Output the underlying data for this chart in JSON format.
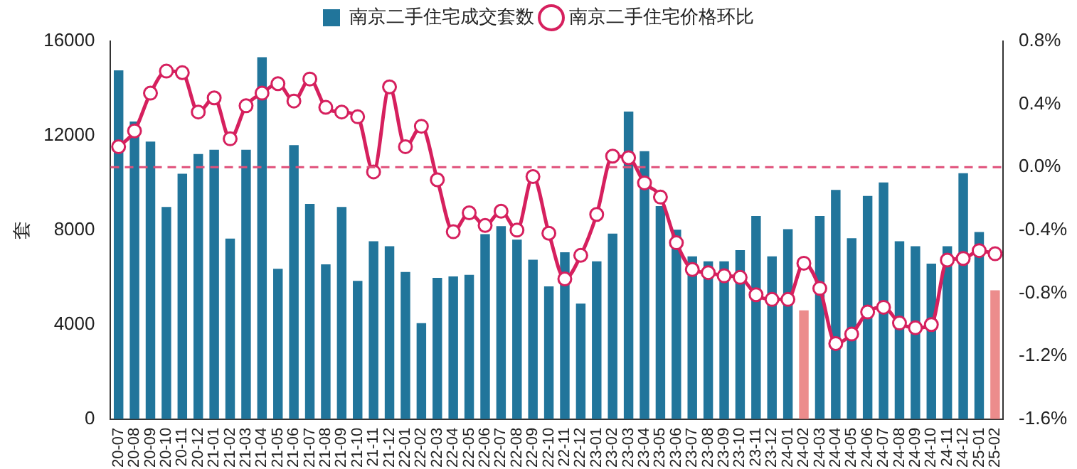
{
  "chart_data": {
    "type": "bar",
    "ylabel": "套",
    "categories": [
      "20-07",
      "20-08",
      "20-09",
      "20-10",
      "20-11",
      "20-12",
      "21-01",
      "21-02",
      "21-03",
      "21-04",
      "21-05",
      "21-06",
      "21-07",
      "21-08",
      "21-09",
      "21-10",
      "21-11",
      "21-12",
      "22-01",
      "22-02",
      "22-03",
      "22-04",
      "22-05",
      "22-06",
      "22-07",
      "22-08",
      "22-09",
      "22-10",
      "22-11",
      "22-12",
      "23-01",
      "23-02",
      "23-03",
      "23-04",
      "23-05",
      "23-06",
      "23-07",
      "23-08",
      "23-09",
      "23-10",
      "23-11",
      "23-12",
      "24-01",
      "24-02",
      "24-03",
      "24-04",
      "24-05",
      "24-06",
      "24-07",
      "24-08",
      "24-09",
      "24-10",
      "24-11",
      "24-12",
      "25-01",
      "25-02"
    ],
    "series": [
      {
        "name": "南京二手住宅成交套数",
        "color": "#21759b",
        "colors": [
          "#21759b",
          "#21759b",
          "#21759b",
          "#21759b",
          "#21759b",
          "#21759b",
          "#21759b",
          "#21759b",
          "#21759b",
          "#21759b",
          "#21759b",
          "#21759b",
          "#21759b",
          "#21759b",
          "#21759b",
          "#21759b",
          "#21759b",
          "#21759b",
          "#21759b",
          "#21759b",
          "#21759b",
          "#21759b",
          "#21759b",
          "#21759b",
          "#21759b",
          "#21759b",
          "#21759b",
          "#21759b",
          "#21759b",
          "#21759b",
          "#21759b",
          "#21759b",
          "#21759b",
          "#21759b",
          "#21759b",
          "#21759b",
          "#21759b",
          "#21759b",
          "#21759b",
          "#21759b",
          "#21759b",
          "#21759b",
          "#21759b",
          "#ec8c8c",
          "#21759b",
          "#21759b",
          "#21759b",
          "#21759b",
          "#21759b",
          "#21759b",
          "#21759b",
          "#21759b",
          "#21759b",
          "#21759b",
          "#21759b",
          "#ec8c8c"
        ],
        "values": [
          14770,
          12600,
          11750,
          8980,
          10390,
          11220,
          11400,
          7640,
          11400,
          15320,
          6360,
          11600,
          9110,
          6550,
          8980,
          5850,
          7530,
          7320,
          6230,
          4060,
          5980,
          6040,
          6110,
          7830,
          8170,
          7600,
          6750,
          5620,
          7060,
          4890,
          6680,
          7850,
          13020,
          11340,
          9020,
          8020,
          6890,
          6680,
          6680,
          7150,
          8600,
          6890,
          8040,
          4600,
          8600,
          9700,
          7660,
          9450,
          10020,
          7530,
          7320,
          6580,
          7320,
          10410,
          7920,
          5450
        ]
      },
      {
        "name": "南京二手住宅价格环比",
        "type": "line",
        "axis": "y2",
        "color": "#d6205e",
        "marker": "circle",
        "values": [
          0.13,
          0.23,
          0.47,
          0.61,
          0.6,
          0.35,
          0.44,
          0.18,
          0.39,
          0.47,
          0.53,
          0.42,
          0.56,
          0.38,
          0.35,
          0.32,
          -0.03,
          0.51,
          0.13,
          0.26,
          -0.08,
          -0.41,
          -0.29,
          -0.37,
          -0.28,
          -0.4,
          -0.06,
          -0.42,
          -0.71,
          -0.56,
          -0.3,
          0.07,
          0.06,
          -0.1,
          -0.19,
          -0.48,
          -0.65,
          -0.67,
          -0.69,
          -0.7,
          -0.81,
          -0.84,
          -0.84,
          -0.61,
          -0.77,
          -1.12,
          -1.06,
          -0.92,
          -0.89,
          -0.99,
          -1.02,
          -1.0,
          -0.59,
          -0.58,
          -0.53,
          -0.55
        ]
      }
    ],
    "ylim": [
      0,
      16000
    ],
    "yticks": [
      0,
      4000,
      8000,
      12000,
      16000
    ],
    "y2lim": [
      -1.6,
      0.8
    ],
    "y2ticks": [
      {
        "value": -1.6,
        "label": "-1.6%"
      },
      {
        "value": -1.2,
        "label": "-1.2%"
      },
      {
        "value": -0.8,
        "label": "-0.8%"
      },
      {
        "value": -0.4,
        "label": "-0.4%"
      },
      {
        "value": 0,
        "label": "0.0%"
      },
      {
        "value": 0.4,
        "label": "0.4%"
      },
      {
        "value": 0.8,
        "label": "0.8%"
      }
    ],
    "ref_lines": [
      {
        "axis": "y2",
        "value": 0,
        "color": "#e0507a",
        "line_style": "dashed"
      }
    ],
    "grid": false,
    "legend": "top"
  }
}
